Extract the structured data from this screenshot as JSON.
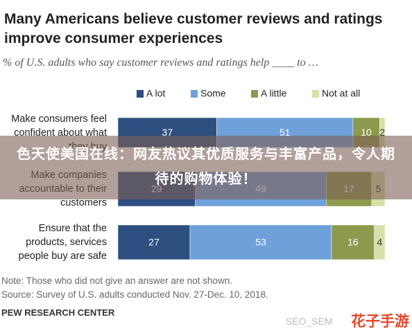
{
  "chart_data": {
    "type": "bar",
    "orientation": "horizontal",
    "stacked": true,
    "title": "Many Americans believe customer reviews and ratings improve consumer experiences",
    "subtitle": "% of U.S. adults who say customer reviews and ratings help ____ to …",
    "categories": [
      "Make consumers feel confident about what they buy",
      "Make companies accountable to their customers",
      "Ensure that the products, services people buy are safe"
    ],
    "series": [
      {
        "name": "A lot",
        "color": "#2d4f80",
        "values": [
          37,
          29,
          27
        ]
      },
      {
        "name": "Some",
        "color": "#6ea1da",
        "values": [
          51,
          49,
          53
        ]
      },
      {
        "name": "A little",
        "color": "#8d9a4e",
        "values": [
          10,
          17,
          16
        ]
      },
      {
        "name": "Not at all",
        "color": "#d9dfa8",
        "values": [
          2,
          5,
          4
        ]
      }
    ],
    "xlim": [
      0,
      100
    ],
    "note": "Note: Those who did not give an answer are not shown.",
    "source": "Source: Survey of U.S. adults conducted Nov. 27-Dec. 10, 2018.",
    "credit": "PEW RESEARCH CENTER"
  },
  "overlay": {
    "banner": "色天使美国在线：网友热议其优质服务与丰富产品，令人期待的购物体验！",
    "watermarks": [
      "SEO_SEM",
      "花子手游"
    ]
  }
}
